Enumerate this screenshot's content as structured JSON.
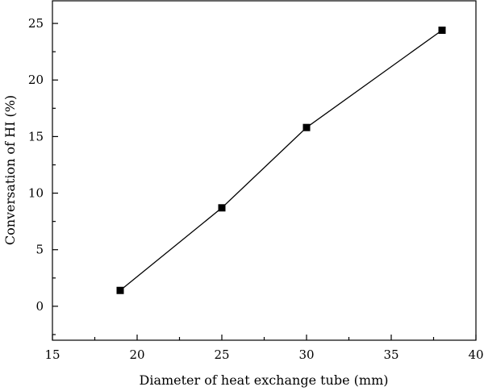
{
  "chart_data": {
    "type": "line",
    "xlabel": "Diameter of heat exchange tube (mm)",
    "ylabel": "Conversation of HI (%)",
    "xlim": [
      15,
      40
    ],
    "ylim": [
      -3,
      27
    ],
    "x_ticks": [
      15,
      20,
      25,
      30,
      35,
      40
    ],
    "y_ticks": [
      0,
      5,
      10,
      15,
      20,
      25
    ],
    "grid": false,
    "marker": "square",
    "series": [
      {
        "x": [
          19,
          25,
          30,
          38
        ],
        "y": [
          1.4,
          8.7,
          15.8,
          24.4
        ]
      }
    ]
  }
}
